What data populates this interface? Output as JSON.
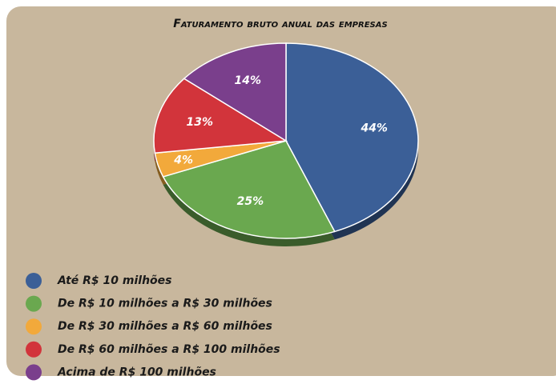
{
  "chart_data": {
    "type": "pie",
    "title": "Faturamento bruto anual das empresas",
    "categories": [
      "Até R$ 10 milhões",
      "De R$ 10 milhões a R$ 30 milhões",
      "De R$ 30 milhões a R$ 60 milhões",
      "De R$ 60 milhões a R$ 100 milhões",
      "Acima de R$ 100 milhões"
    ],
    "values": [
      44,
      25,
      4,
      13,
      14
    ],
    "value_labels": [
      "44%",
      "25%",
      "4%",
      "13%",
      "14%"
    ],
    "colors": [
      "#3b5f97",
      "#6aa84f",
      "#f2a93b",
      "#d2343b",
      "#7a3f8c"
    ]
  }
}
